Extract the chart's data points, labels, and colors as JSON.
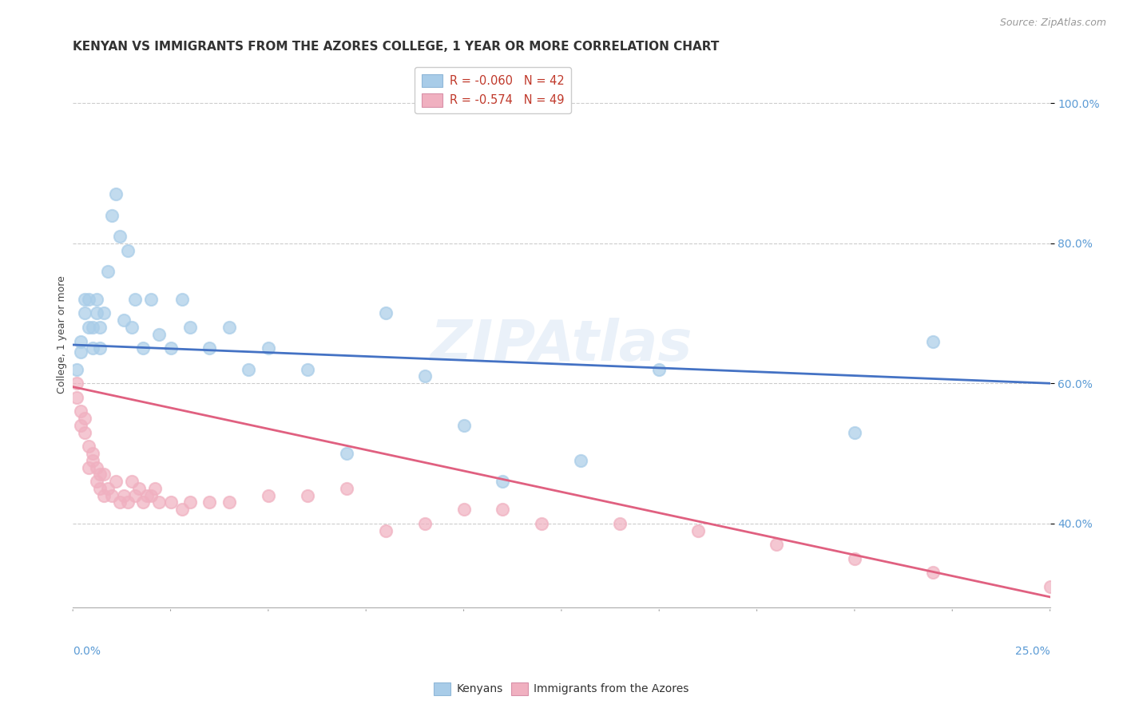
{
  "title": "KENYAN VS IMMIGRANTS FROM THE AZORES COLLEGE, 1 YEAR OR MORE CORRELATION CHART",
  "source": "Source: ZipAtlas.com",
  "ylabel": "College, 1 year or more",
  "ylabel_ticks": [
    "40.0%",
    "60.0%",
    "80.0%",
    "100.0%"
  ],
  "ylabel_tick_vals": [
    0.4,
    0.6,
    0.8,
    1.0
  ],
  "xmin": 0.0,
  "xmax": 0.25,
  "ymin": 0.28,
  "ymax": 1.06,
  "kenyan_color": "#a8cce8",
  "azores_color": "#f0b0c0",
  "kenyan_line_color": "#4472c4",
  "azores_line_color": "#e06080",
  "kenyan_R": -0.06,
  "kenyan_N": 42,
  "azores_R": -0.574,
  "azores_N": 49,
  "legend_label_kenyan": "R = -0.060   N = 42",
  "legend_label_azores": "R = -0.574   N = 49",
  "kenyan_x": [
    0.001,
    0.002,
    0.002,
    0.003,
    0.003,
    0.004,
    0.004,
    0.005,
    0.005,
    0.006,
    0.006,
    0.007,
    0.007,
    0.008,
    0.009,
    0.01,
    0.011,
    0.012,
    0.013,
    0.014,
    0.015,
    0.016,
    0.018,
    0.02,
    0.022,
    0.025,
    0.028,
    0.03,
    0.035,
    0.04,
    0.045,
    0.05,
    0.06,
    0.07,
    0.08,
    0.09,
    0.1,
    0.11,
    0.13,
    0.15,
    0.2,
    0.22
  ],
  "kenyan_y": [
    0.62,
    0.645,
    0.66,
    0.7,
    0.72,
    0.68,
    0.72,
    0.65,
    0.68,
    0.7,
    0.72,
    0.65,
    0.68,
    0.7,
    0.76,
    0.84,
    0.87,
    0.81,
    0.69,
    0.79,
    0.68,
    0.72,
    0.65,
    0.72,
    0.67,
    0.65,
    0.72,
    0.68,
    0.65,
    0.68,
    0.62,
    0.65,
    0.62,
    0.5,
    0.7,
    0.61,
    0.54,
    0.46,
    0.49,
    0.62,
    0.53,
    0.66
  ],
  "azores_x": [
    0.001,
    0.001,
    0.002,
    0.002,
    0.003,
    0.003,
    0.004,
    0.004,
    0.005,
    0.005,
    0.006,
    0.006,
    0.007,
    0.007,
    0.008,
    0.008,
    0.009,
    0.01,
    0.011,
    0.012,
    0.013,
    0.014,
    0.015,
    0.016,
    0.017,
    0.018,
    0.019,
    0.02,
    0.021,
    0.022,
    0.025,
    0.028,
    0.03,
    0.035,
    0.04,
    0.05,
    0.06,
    0.07,
    0.08,
    0.09,
    0.1,
    0.11,
    0.12,
    0.14,
    0.16,
    0.18,
    0.2,
    0.22,
    0.25
  ],
  "azores_y": [
    0.6,
    0.58,
    0.56,
    0.54,
    0.55,
    0.53,
    0.51,
    0.48,
    0.5,
    0.49,
    0.48,
    0.46,
    0.47,
    0.45,
    0.47,
    0.44,
    0.45,
    0.44,
    0.46,
    0.43,
    0.44,
    0.43,
    0.46,
    0.44,
    0.45,
    0.43,
    0.44,
    0.44,
    0.45,
    0.43,
    0.43,
    0.42,
    0.43,
    0.43,
    0.43,
    0.44,
    0.44,
    0.45,
    0.39,
    0.4,
    0.42,
    0.42,
    0.4,
    0.4,
    0.39,
    0.37,
    0.35,
    0.33,
    0.31
  ],
  "background_color": "#ffffff",
  "grid_color": "#cccccc",
  "watermark_text": "ZIPAtlas",
  "title_fontsize": 11,
  "axis_label_fontsize": 9,
  "tick_fontsize": 10,
  "source_fontsize": 9
}
